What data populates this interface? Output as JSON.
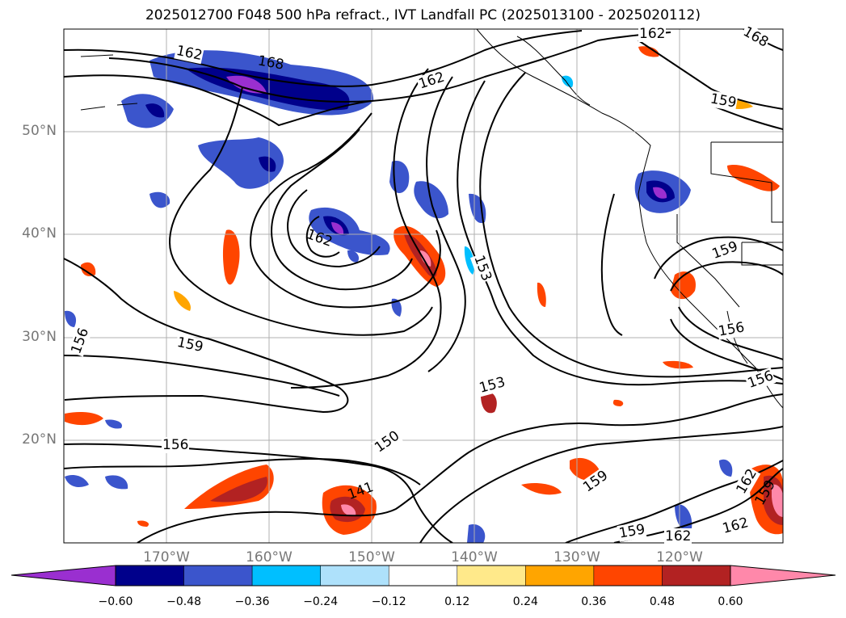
{
  "title": "2025012700 F048 500 hPa refract., IVT Landfall PC (2025013100 - 2025020112)",
  "latitude_labels": [
    "50°N",
    "40°N",
    "30°N",
    "20°N"
  ],
  "longitude_labels": [
    "170°W",
    "160°W",
    "150°W",
    "140°W",
    "130°W",
    "120°W"
  ],
  "contour_labels": [
    "162",
    "168",
    "168",
    "162",
    "162",
    "162",
    "159",
    "162",
    "153",
    "156",
    "159",
    "153",
    "150",
    "156",
    "141",
    "159",
    "159",
    "162",
    "162",
    "159",
    "156",
    "156",
    "159"
  ],
  "colorbar": {
    "tick_labels": [
      "−0.60",
      "−0.48",
      "−0.36",
      "−0.24",
      "−0.12",
      "0.12",
      "0.24",
      "0.36",
      "0.48",
      "0.60"
    ],
    "colors": [
      "#9a2fd0",
      "#00008b",
      "#3b55cc",
      "#00bfff",
      "#aee1fb",
      "#ffffff",
      "#ffe98a",
      "#ffa500",
      "#ff4500",
      "#b22222",
      "#ff88aa"
    ]
  },
  "colors": {
    "land_border": "#000000",
    "grid": "#b0b0b0",
    "contour": "#000000"
  }
}
